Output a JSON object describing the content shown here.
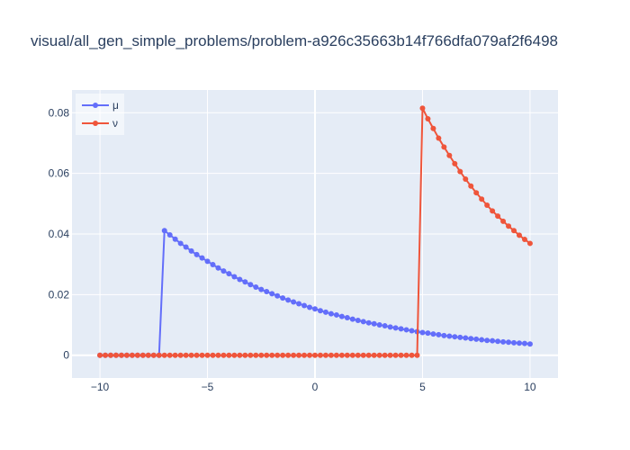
{
  "chart_data": {
    "type": "line",
    "title": "visual/all_gen_simple_problems/problem-a926c35663b14f766dfa079af2f6498",
    "xlabel": "",
    "ylabel": "",
    "xlim": [
      -11.3,
      11.3
    ],
    "ylim": [
      -0.0075,
      0.0875
    ],
    "grid": true,
    "legend_position": "top-left",
    "x_ticks": [
      -10,
      -5,
      0,
      5,
      10
    ],
    "x_tick_labels": [
      "−10",
      "−5",
      "0",
      "5",
      "10"
    ],
    "y_ticks": [
      0,
      0.02,
      0.04,
      0.06,
      0.08
    ],
    "y_tick_labels": [
      "0",
      "0.02",
      "0.04",
      "0.06",
      "0.08"
    ],
    "series": [
      {
        "name": "μ",
        "color": "#636efa",
        "x": [
          -10,
          -9.75,
          -9.5,
          -9.25,
          -9,
          -8.75,
          -8.5,
          -8.25,
          -8,
          -7.75,
          -7.5,
          -7.25,
          -7,
          -6.75,
          -6.5,
          -6.25,
          -6,
          -5.75,
          -5.5,
          -5.25,
          -5,
          -4.75,
          -4.5,
          -4.25,
          -4,
          -3.75,
          -3.5,
          -3.25,
          -3,
          -2.75,
          -2.5,
          -2.25,
          -2,
          -1.75,
          -1.5,
          -1.25,
          -1,
          -0.75,
          -0.5,
          -0.25,
          0,
          0.25,
          0.5,
          0.75,
          1,
          1.25,
          1.5,
          1.75,
          2,
          2.25,
          2.5,
          2.75,
          3,
          3.25,
          3.5,
          3.75,
          4,
          4.25,
          4.5,
          4.75,
          5,
          5.25,
          5.5,
          5.75,
          6,
          6.25,
          6.5,
          6.75,
          7,
          7.25,
          7.5,
          7.75,
          8,
          8.25,
          8.5,
          8.75,
          9,
          9.25,
          9.5,
          9.75,
          10
        ],
        "y": [
          0,
          0,
          0,
          0,
          0,
          0,
          0,
          0,
          0,
          0,
          0,
          0,
          0.0411,
          0.0397,
          0.0383,
          0.0369,
          0.0357,
          0.0344,
          0.0332,
          0.0321,
          0.031,
          0.0299,
          0.0288,
          0.0278,
          0.0269,
          0.0259,
          0.025,
          0.0242,
          0.0233,
          0.0225,
          0.0217,
          0.021,
          0.0203,
          0.0196,
          0.0189,
          0.0182,
          0.0176,
          0.017,
          0.0164,
          0.0158,
          0.0153,
          0.0147,
          0.0142,
          0.0137,
          0.0133,
          0.0128,
          0.0124,
          0.0119,
          0.0115,
          0.0111,
          0.0107,
          0.0104,
          0.01,
          0.0097,
          0.0093,
          0.009,
          0.0087,
          0.0084,
          0.0081,
          0.0078,
          0.0075,
          0.0073,
          0.007,
          0.0068,
          0.0065,
          0.0063,
          0.0061,
          0.0059,
          0.0057,
          0.0055,
          0.0053,
          0.0051,
          0.0049,
          0.0048,
          0.0046,
          0.0044,
          0.0043,
          0.0041,
          0.004,
          0.0039,
          0.0037
        ]
      },
      {
        "name": "ν",
        "color": "#ef553b",
        "x": [
          -10,
          -9.75,
          -9.5,
          -9.25,
          -9,
          -8.75,
          -8.5,
          -8.25,
          -8,
          -7.75,
          -7.5,
          -7.25,
          -7,
          -6.75,
          -6.5,
          -6.25,
          -6,
          -5.75,
          -5.5,
          -5.25,
          -5,
          -4.75,
          -4.5,
          -4.25,
          -4,
          -3.75,
          -3.5,
          -3.25,
          -3,
          -2.75,
          -2.5,
          -2.25,
          -2,
          -1.75,
          -1.5,
          -1.25,
          -1,
          -0.75,
          -0.5,
          -0.25,
          0,
          0.25,
          0.5,
          0.75,
          1,
          1.25,
          1.5,
          1.75,
          2,
          2.25,
          2.5,
          2.75,
          3,
          3.25,
          3.5,
          3.75,
          4,
          4.25,
          4.5,
          4.75,
          5,
          5.25,
          5.5,
          5.75,
          6,
          6.25,
          6.5,
          6.75,
          7,
          7.25,
          7.5,
          7.75,
          8,
          8.25,
          8.5,
          8.75,
          9,
          9.25,
          9.5,
          9.75,
          10
        ],
        "y": [
          0,
          0,
          0,
          0,
          0,
          0,
          0,
          0,
          0,
          0,
          0,
          0,
          0,
          0,
          0,
          0,
          0,
          0,
          0,
          0,
          0,
          0,
          0,
          0,
          0,
          0,
          0,
          0,
          0,
          0,
          0,
          0,
          0,
          0,
          0,
          0,
          0,
          0,
          0,
          0,
          0,
          0,
          0,
          0,
          0,
          0,
          0,
          0,
          0,
          0,
          0,
          0,
          0,
          0,
          0,
          0,
          0,
          0,
          0,
          0,
          0.0815,
          0.078,
          0.0748,
          0.0716,
          0.0687,
          0.0659,
          0.0632,
          0.0606,
          0.0581,
          0.0558,
          0.0536,
          0.0515,
          0.0495,
          0.0476,
          0.0459,
          0.0442,
          0.0426,
          0.0411,
          0.0396,
          0.0382,
          0.0369
        ]
      }
    ]
  }
}
